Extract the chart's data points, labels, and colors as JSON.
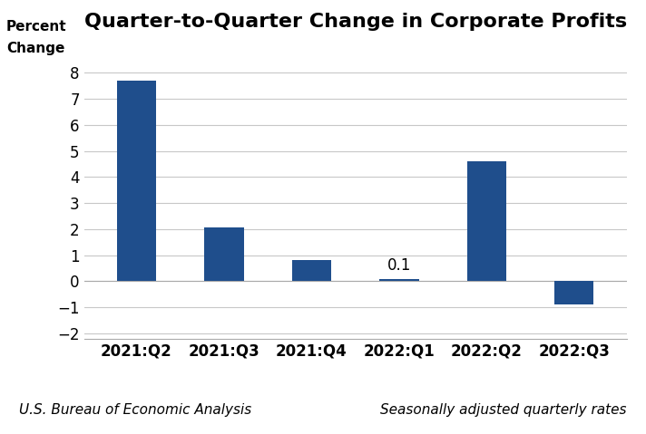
{
  "categories": [
    "2021:Q2",
    "2021:Q3",
    "2021:Q4",
    "2022:Q1",
    "2022:Q2",
    "2022:Q3"
  ],
  "values": [
    7.7,
    2.05,
    0.8,
    0.1,
    4.6,
    -0.9
  ],
  "bar_color": "#1F4E8C",
  "title": "Quarter-to-Quarter Change in Corporate Profits",
  "ylabel_line1": "Percent",
  "ylabel_line2": "Change",
  "ylim": [
    -2.2,
    8.8
  ],
  "yticks": [
    -2,
    -1,
    0,
    1,
    2,
    3,
    4,
    5,
    6,
    7,
    8
  ],
  "annotate_index": 3,
  "annotate_label": "0.1",
  "footer_left": "U.S. Bureau of Economic Analysis",
  "footer_right": "Seasonally adjusted quarterly rates",
  "title_fontsize": 16,
  "label_fontsize": 11,
  "tick_fontsize": 12,
  "footer_fontsize": 11,
  "bar_width": 0.45,
  "background_color": "#ffffff",
  "grid_color": "#c8c8c8"
}
